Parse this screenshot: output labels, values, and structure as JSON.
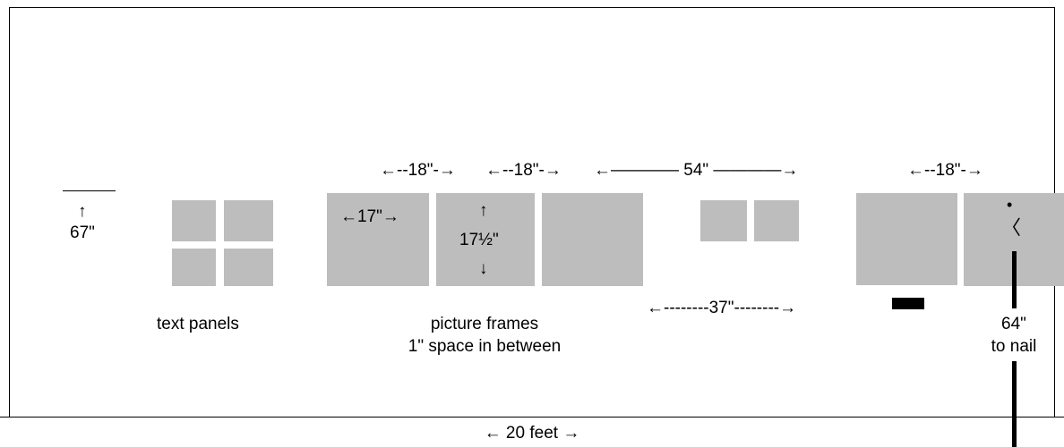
{
  "dimensions": {
    "dim_18_a": "←--18\"-→",
    "dim_18_b": "←--18\"-→",
    "dim_54": "←———— 54\" ————→",
    "dim_18_c": "←--18\"-→",
    "dim_17_width": "←17\"→",
    "arrow_up": "↑",
    "dim_17_5_height": "17½\"",
    "arrow_down": "↓",
    "dim_37": "←--------37\"--------→",
    "dim_67_arrow": "↑",
    "dim_67": "67\"",
    "dim_64": "64\"",
    "dim_64_sub": "to nail",
    "dim_20_feet": "← 20 feet →"
  },
  "labels": {
    "text_panels": "text panels",
    "picture_frames": "picture frames",
    "picture_frames_sub": "1\" space in between"
  },
  "figure": {
    "head": "•",
    "body": "〈"
  },
  "colors": {
    "panel": "#bdbdbd",
    "line": "#000000",
    "background": "#ffffff"
  }
}
